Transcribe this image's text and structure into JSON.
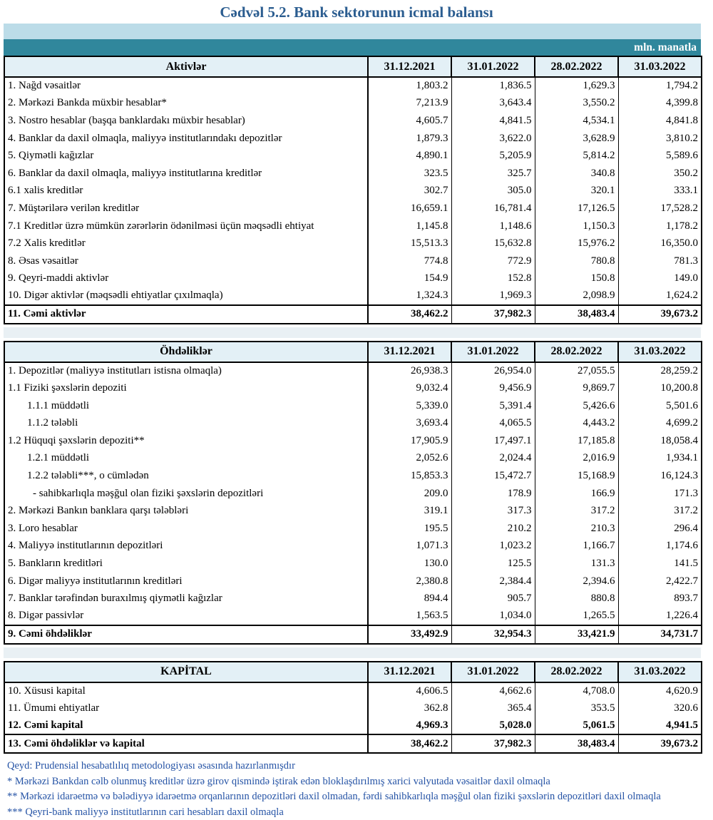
{
  "title": "Cədvəl 5.2. Bank sektorunun icmal balansı",
  "unit_label": "mln. manatla",
  "columns": [
    "31.12.2021",
    "31.01.2022",
    "28.02.2022",
    "31.03.2022"
  ],
  "colors": {
    "title_color": "#2b5d90",
    "band_light": "#bcdce8",
    "band_teal": "#30879c",
    "header_bg": "#e3f0f6",
    "gap_band": "#e9f0f4",
    "footnote": "#2553a5"
  },
  "sections": [
    {
      "title": "Aktivlər",
      "rows": [
        {
          "label": "1. Nağd vəsaitlər",
          "values": [
            "1,803.2",
            "1,836.5",
            "1,629.3",
            "1,794.2"
          ],
          "style": "normal",
          "indent": 0
        },
        {
          "label": "2. Mərkəzi Bankda müxbir hesablar*",
          "values": [
            "7,213.9",
            "3,643.4",
            "3,550.2",
            "4,399.8"
          ],
          "style": "normal",
          "indent": 0
        },
        {
          "label": "3. Nostro hesablar (başqa banklardakı müxbir hesablar)",
          "values": [
            "4,605.7",
            "4,841.5",
            "4,534.1",
            "4,841.8"
          ],
          "style": "normal",
          "indent": 0
        },
        {
          "label": "4. Banklar da daxil olmaqla, maliyyə institutlarındakı depozitlər",
          "values": [
            "1,879.3",
            "3,622.0",
            "3,628.9",
            "3,810.2"
          ],
          "style": "normal",
          "indent": 0
        },
        {
          "label": "5. Qiymətli kağızlar",
          "values": [
            "4,890.1",
            "5,205.9",
            "5,814.2",
            "5,589.6"
          ],
          "style": "normal",
          "indent": 0
        },
        {
          "label": "6. Banklar da daxil olmaqla, maliyyə institutlarına kreditlər",
          "values": [
            "323.5",
            "325.7",
            "340.8",
            "350.2"
          ],
          "style": "normal",
          "indent": 0
        },
        {
          "label": "6.1 xalis kreditlər",
          "values": [
            "302.7",
            "305.0",
            "320.1",
            "333.1"
          ],
          "style": "normal",
          "indent": 0
        },
        {
          "label": "7. Müştərilərə verilən kreditlər",
          "values": [
            "16,659.1",
            "16,781.4",
            "17,126.5",
            "17,528.2"
          ],
          "style": "normal",
          "indent": 0
        },
        {
          "label": "7.1 Kreditlər üzrə mümkün zərərlərin ödənilməsi üçün məqsədli ehtiyat",
          "values": [
            "1,145.8",
            "1,148.6",
            "1,150.3",
            "1,178.2"
          ],
          "style": "normal",
          "indent": 0
        },
        {
          "label": "7.2 Xalis kreditlər",
          "values": [
            "15,513.3",
            "15,632.8",
            "15,976.2",
            "16,350.0"
          ],
          "style": "normal",
          "indent": 0
        },
        {
          "label": "8.  Əsas vəsaitlər",
          "values": [
            "774.8",
            "772.9",
            "780.8",
            "781.3"
          ],
          "style": "normal",
          "indent": 0
        },
        {
          "label": "9. Qeyri-maddi aktivlər",
          "values": [
            "154.9",
            "152.8",
            "150.8",
            "149.0"
          ],
          "style": "normal",
          "indent": 0
        },
        {
          "label": "10. Digər aktivlər (məqsədli ehtiyatlar çıxılmaqla)",
          "values": [
            "1,324.3",
            "1,969.3",
            "2,098.9",
            "1,624.2"
          ],
          "style": "normal",
          "indent": 0
        },
        {
          "label": "11. Cəmi aktivlər",
          "values": [
            "38,462.2",
            "37,982.3",
            "38,483.4",
            "39,673.2"
          ],
          "style": "total",
          "indent": 0
        }
      ]
    },
    {
      "title": "Öhdəliklər",
      "rows": [
        {
          "label": "1. Depozitlər (maliyyə institutları istisna olmaqla)",
          "values": [
            "26,938.3",
            "26,954.0",
            "27,055.5",
            "28,259.2"
          ],
          "style": "normal",
          "indent": 0
        },
        {
          "label": "1.1 Fiziki şəxslərin depoziti",
          "values": [
            "9,032.4",
            "9,456.9",
            "9,869.7",
            "10,200.8"
          ],
          "style": "normal",
          "indent": 0
        },
        {
          "label": "1.1.1 müddətli",
          "values": [
            "5,339.0",
            "5,391.4",
            "5,426.6",
            "5,501.6"
          ],
          "style": "normal",
          "indent": 1
        },
        {
          "label": "1.1.2 tələbli",
          "values": [
            "3,693.4",
            "4,065.5",
            "4,443.2",
            "4,699.2"
          ],
          "style": "normal",
          "indent": 1
        },
        {
          "label": "1.2 Hüquqi şəxslərin depoziti**",
          "values": [
            "17,905.9",
            "17,497.1",
            "17,185.8",
            "18,058.4"
          ],
          "style": "normal",
          "indent": 0
        },
        {
          "label": "1.2.1 müddətli",
          "values": [
            "2,052.6",
            "2,024.4",
            "2,016.9",
            "1,934.1"
          ],
          "style": "normal",
          "indent": 1
        },
        {
          "label": "1.2.2 tələbli***, o cümlədən",
          "values": [
            "15,853.3",
            "15,472.7",
            "15,168.9",
            "16,124.3"
          ],
          "style": "normal",
          "indent": 1
        },
        {
          "label": "- sahibkarlıqla məşğul olan fiziki şəxslərin depozitləri",
          "values": [
            "209.0",
            "178.9",
            "166.9",
            "171.3"
          ],
          "style": "normal",
          "indent": 2
        },
        {
          "label": "2. Mərkəzi Bankın banklara qarşı tələbləri",
          "values": [
            "319.1",
            "317.3",
            "317.2",
            "317.2"
          ],
          "style": "normal",
          "indent": 0
        },
        {
          "label": "3. Loro hesablar",
          "values": [
            "195.5",
            "210.2",
            "210.3",
            "296.4"
          ],
          "style": "normal",
          "indent": 0
        },
        {
          "label": "4. Maliyyə institutlarının  depozitləri",
          "values": [
            "1,071.3",
            "1,023.2",
            "1,166.7",
            "1,174.6"
          ],
          "style": "normal",
          "indent": 0
        },
        {
          "label": "5. Bankların kreditləri",
          "values": [
            "130.0",
            "125.5",
            "131.3",
            "141.5"
          ],
          "style": "normal",
          "indent": 0
        },
        {
          "label": "6. Digər maliyyə institutlarının kreditləri",
          "values": [
            "2,380.8",
            "2,384.4",
            "2,394.6",
            "2,422.7"
          ],
          "style": "normal",
          "indent": 0
        },
        {
          "label": "7. Banklar tərəfindən buraxılmış qiymətli kağızlar",
          "values": [
            "894.4",
            "905.7",
            "880.8",
            "893.7"
          ],
          "style": "normal",
          "indent": 0
        },
        {
          "label": "8. Digər passivlər",
          "values": [
            "1,563.5",
            "1,034.0",
            "1,265.5",
            "1,226.4"
          ],
          "style": "normal",
          "indent": 0
        },
        {
          "label": "9. Cəmi öhdəliklər",
          "values": [
            "33,492.9",
            "32,954.3",
            "33,421.9",
            "34,731.7"
          ],
          "style": "total",
          "indent": 0
        }
      ]
    },
    {
      "title": "KAPİTAL",
      "rows": [
        {
          "label": "10. Xüsusi kapital",
          "values": [
            "4,606.5",
            "4,662.6",
            "4,708.0",
            "4,620.9"
          ],
          "style": "normal",
          "indent": 0
        },
        {
          "label": "11. Ümumi ehtiyatlar",
          "values": [
            "362.8",
            "365.4",
            "353.5",
            "320.6"
          ],
          "style": "normal",
          "indent": 0
        },
        {
          "label": "12. Cəmi kapital",
          "values": [
            "4,969.3",
            "5,028.0",
            "5,061.5",
            "4,941.5"
          ],
          "style": "bold",
          "indent": 0
        },
        {
          "label": "13. Cəmi öhdəliklər və kapital",
          "values": [
            "38,462.2",
            "37,982.3",
            "38,483.4",
            "39,673.2"
          ],
          "style": "total",
          "indent": 0
        }
      ]
    }
  ],
  "footnotes": [
    "Qeyd: Prudensial hesabatlılıq metodologiyası əsasında hazırlanmışdır",
    "* Mərkəzi Bankdan cəlb olunmuş kreditlər üzrə girov qismində iştirak edən bloklaşdırılmış xarici valyutada vəsaitlər daxil olmaqla",
    "** Mərkəzi idarəetmə və bələdiyyə idarəetmə orqanlarının depozitləri daxil olmadan, fərdi sahibkarlıqla məşğul olan fiziki şəxslərin depozitləri daxil olmaqla",
    "*** Qeyri-bank maliyyə institutlarının cari hesabları daxil olmaqla"
  ]
}
